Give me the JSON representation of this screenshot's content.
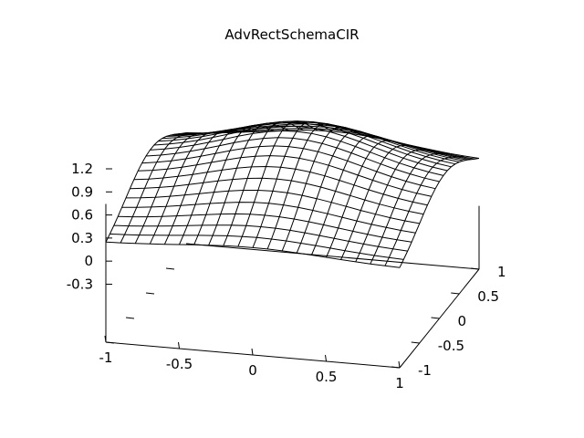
{
  "chart_data": {
    "type": "surface",
    "title": "AdvRectSchemaCIR",
    "xlabel": "",
    "ylabel": "",
    "zlabel": "",
    "x_ticks": [
      "-1",
      "-0.5",
      "0",
      "0.5",
      "1"
    ],
    "y_ticks": [
      "-1",
      "-0.5",
      "0",
      "0.5",
      "1"
    ],
    "z_ticks": [
      "-0.3",
      "0",
      "0.3",
      "0.6",
      "0.9",
      "1.2"
    ],
    "xlim": [
      -1,
      1
    ],
    "ylim": [
      -1,
      1
    ],
    "zlim": [
      -0.3,
      1.2
    ],
    "grid_size": 21,
    "surface": "z ≈ 1.05·exp(-(y-0.15)²/0.9)·(0.55+0.45·exp(-x²/0.5)) + 0.1",
    "line_color": "#000000"
  }
}
